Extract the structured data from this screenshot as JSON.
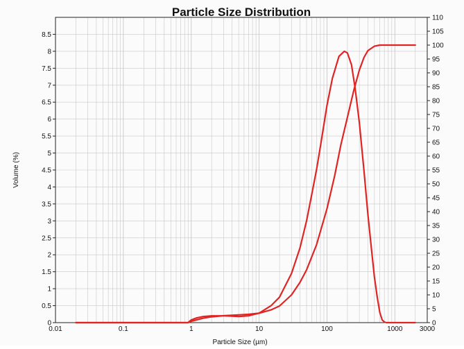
{
  "chart_data": {
    "type": "line",
    "title": "Particle Size Distribution",
    "xlabel": "Particle Size (µm)",
    "ylabel": "Volume (%)",
    "xscale": "log",
    "xlim": [
      0.01,
      3000
    ],
    "ylim": [
      0,
      9
    ],
    "y2lim": [
      0,
      110
    ],
    "grid": true,
    "colors": {
      "series": "#e02424",
      "grid": "#c8c8c8",
      "frame": "#222222"
    },
    "x_ticks": [
      "0.01",
      "0.1",
      "1",
      "10",
      "100",
      "1000",
      "3000"
    ],
    "y_ticks": [
      "0",
      "0.5",
      "1",
      "1.5",
      "2",
      "2.5",
      "3",
      "3.5",
      "4",
      "4.5",
      "5",
      "5.5",
      "6",
      "6.5",
      "7",
      "7.5",
      "8",
      "8.5"
    ],
    "y2_ticks": [
      "0",
      "5",
      "10",
      "15",
      "20",
      "25",
      "30",
      "35",
      "40",
      "45",
      "50",
      "55",
      "60",
      "65",
      "70",
      "75",
      "80",
      "85",
      "90",
      "95",
      "100",
      "105",
      "110"
    ],
    "series": [
      {
        "axis": "left",
        "x": [
          0.02,
          0.5,
          0.9,
          1.0,
          1.2,
          1.5,
          2,
          3,
          4,
          5,
          7,
          10,
          15,
          20,
          30,
          40,
          50,
          60,
          70,
          80,
          100,
          120,
          150,
          180,
          200,
          230,
          260,
          300,
          350,
          400,
          450,
          500,
          550,
          600,
          650,
          700,
          750,
          850,
          2000
        ],
        "values": [
          0,
          0,
          0,
          0.08,
          0.14,
          0.18,
          0.2,
          0.2,
          0.19,
          0.18,
          0.2,
          0.28,
          0.5,
          0.75,
          1.45,
          2.2,
          3.0,
          3.8,
          4.5,
          5.2,
          6.4,
          7.2,
          7.85,
          8.0,
          7.95,
          7.6,
          6.9,
          5.9,
          4.5,
          3.2,
          2.2,
          1.35,
          0.75,
          0.3,
          0.08,
          0.02,
          0,
          0,
          0
        ]
      },
      {
        "axis": "right",
        "x": [
          0.02,
          0.5,
          0.9,
          1.0,
          1.2,
          1.5,
          2,
          3,
          5,
          7,
          10,
          15,
          20,
          30,
          40,
          50,
          70,
          100,
          130,
          160,
          200,
          250,
          300,
          350,
          400,
          500,
          600,
          700,
          1000,
          2000
        ],
        "values": [
          0,
          0,
          0,
          0.5,
          1.0,
          1.6,
          2.1,
          2.5,
          2.8,
          3.0,
          3.4,
          4.6,
          6.0,
          10.0,
          14.5,
          19.0,
          28.0,
          41.0,
          53.0,
          64.0,
          74.0,
          84.0,
          91.0,
          95.5,
          98.0,
          99.6,
          100,
          100,
          100,
          100
        ]
      }
    ]
  }
}
